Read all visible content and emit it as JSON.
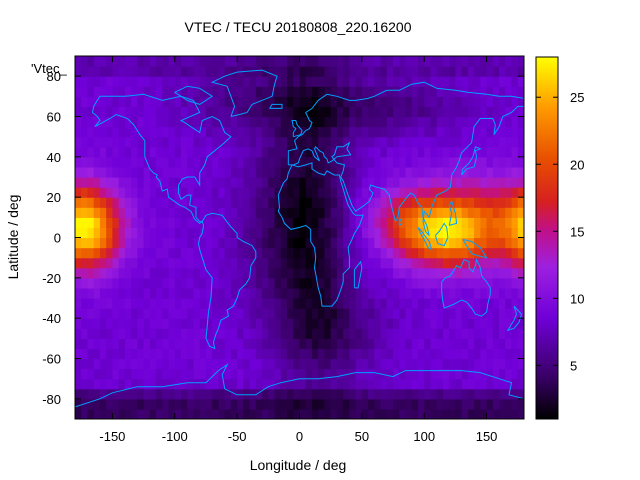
{
  "chart_data": {
    "type": "heatmap",
    "title": "VTEC / TECU 20180808_220.16200",
    "data_tag": "'Vtec_",
    "xlabel": "Longitude / deg",
    "ylabel": "Latitude / deg",
    "xlim": [
      -180,
      180
    ],
    "ylim": [
      -90,
      90
    ],
    "x_ticks": [
      -150,
      -100,
      -50,
      0,
      50,
      100,
      150
    ],
    "y_ticks": [
      -80,
      -60,
      -40,
      -20,
      0,
      20,
      40,
      60,
      80
    ],
    "colorbar": {
      "range": [
        1,
        28
      ],
      "ticks": [
        5,
        10,
        15,
        20,
        25
      ],
      "palette": "black-purple-red-orange-yellow"
    },
    "grid": false,
    "features": [
      {
        "name": "equatorial anomaly (Asia-Pacific)",
        "lon_center": 115,
        "lat_center": 3,
        "peak_vtec": 27
      },
      {
        "name": "equatorial anomaly (Pacific dateline)",
        "lon_center": -165,
        "lat_center": 3,
        "peak_vtec": 20
      },
      {
        "name": "mid-Atlantic minimum",
        "lon_center": 10,
        "lat_center": 10,
        "min_vtec": 2
      },
      {
        "name": "polar cap minimum",
        "lon_center": 0,
        "lat_center": -85,
        "min_vtec": 2
      }
    ],
    "colors": {
      "low": "#000000",
      "mid_low": "#5f00c8",
      "mid": "#9a22e0",
      "high": "#e23000",
      "very_high": "#ffa000",
      "peak": "#ffff00",
      "coastline": "#00a0ff"
    }
  }
}
